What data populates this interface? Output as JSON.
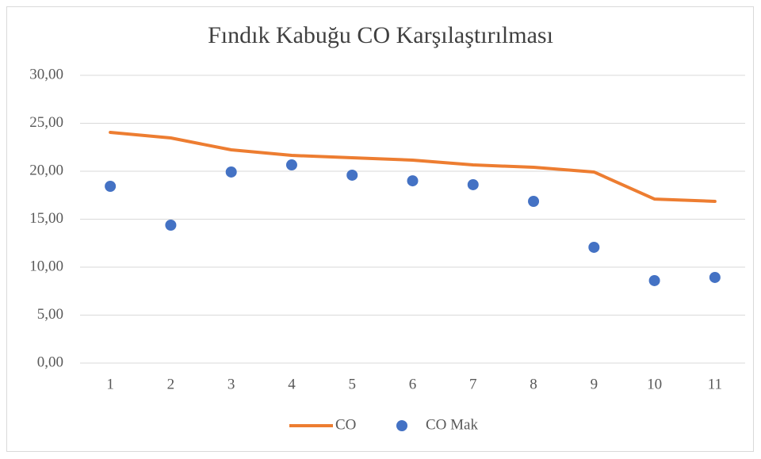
{
  "chart_data": {
    "type": "combo",
    "title": "Fındık Kabuğu CO Karşılaştırılması",
    "categories": [
      "1",
      "2",
      "3",
      "4",
      "5",
      "6",
      "7",
      "8",
      "9",
      "10",
      "11"
    ],
    "series": [
      {
        "name": "CO",
        "type": "line",
        "color": "#ed7d31",
        "values": [
          24.05,
          23.47,
          22.23,
          21.65,
          21.4,
          21.16,
          20.66,
          20.41,
          19.92,
          17.1,
          16.86
        ]
      },
      {
        "name": "CO Mak",
        "type": "scatter",
        "color": "#4472c4",
        "values": [
          18.43,
          14.38,
          19.92,
          20.66,
          19.59,
          19.0,
          18.6,
          16.86,
          12.07,
          8.6,
          8.93
        ]
      }
    ],
    "ylim": [
      0,
      30
    ],
    "yticks": [
      {
        "value": 0,
        "label": "0,00"
      },
      {
        "value": 5,
        "label": "5,00"
      },
      {
        "value": 10,
        "label": "10,00"
      },
      {
        "value": 15,
        "label": "15,00"
      },
      {
        "value": 20,
        "label": "20,00"
      },
      {
        "value": 25,
        "label": "25,00"
      },
      {
        "value": 30,
        "label": "30,00"
      }
    ],
    "grid": true,
    "legend": "bottom"
  }
}
